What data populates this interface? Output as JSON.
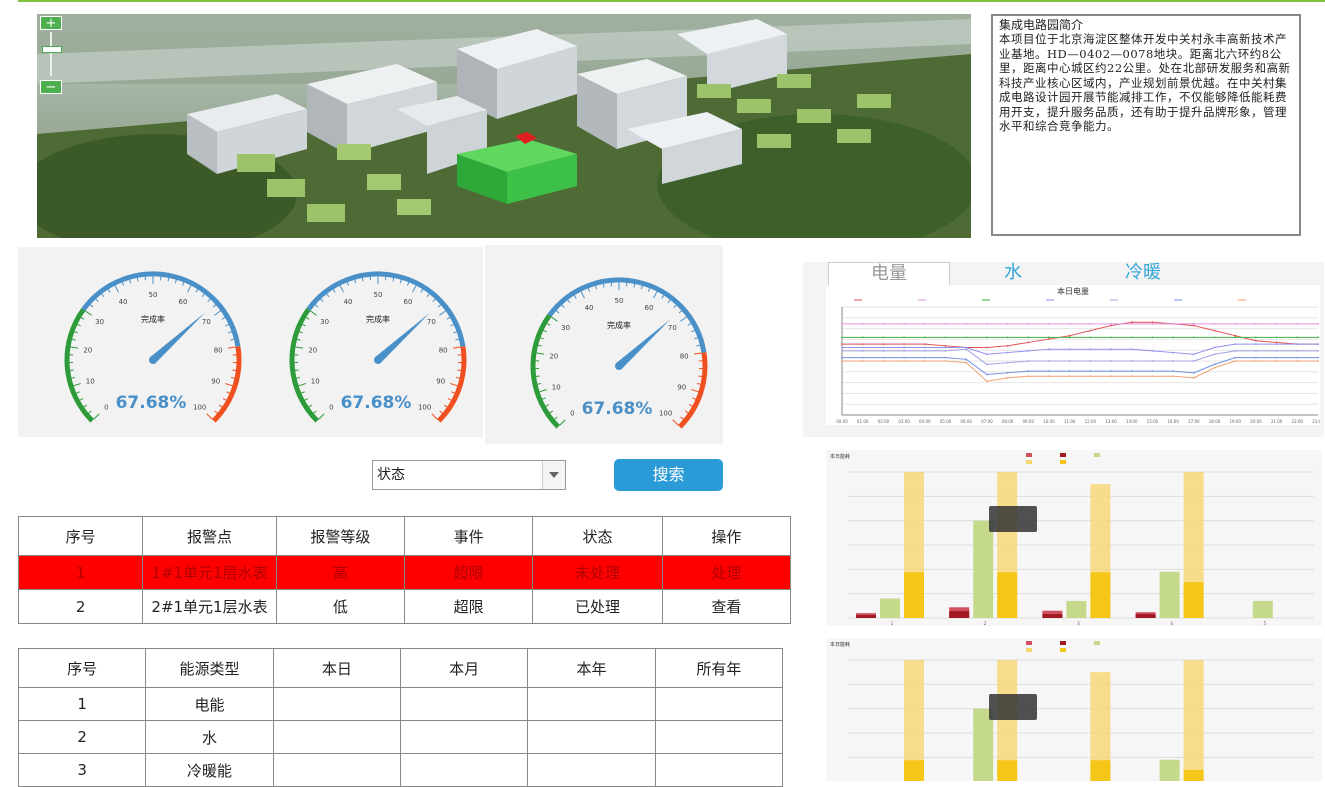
{
  "intro": {
    "title": "集成电路园简介",
    "body": "本项目位于北京海淀区整体开发中关村永丰高新技术产业基地。HD—0402—0078地块。距离北六环约8公里，距离中心城区约22公里。处在北部研发服务和高新科技产业核心区域内，产业规划前景优越。在中关村集成电路设计园开展节能减排工作，不仅能够降低能耗费用开支，提升服务品质，还有助于提升品牌形象，管理水平和综合竞争能力。"
  },
  "map_zoom": {
    "plus": "+",
    "minus": "−"
  },
  "gauges": [
    {
      "label": "完成率",
      "value": "67.68%",
      "level": 67.68,
      "ticks": [
        "0",
        "10",
        "20",
        "30",
        "40",
        "50",
        "60",
        "70",
        "80",
        "90",
        "100"
      ]
    },
    {
      "label": "完成率",
      "value": "67.68%",
      "level": 67.68,
      "ticks": [
        "0",
        "10",
        "20",
        "30",
        "40",
        "50",
        "60",
        "70",
        "80",
        "90",
        "100"
      ]
    },
    {
      "label": "完成率",
      "value": "67.68%",
      "level": 67.68,
      "ticks": [
        "0",
        "10",
        "20",
        "30",
        "40",
        "50",
        "60",
        "70",
        "80",
        "90",
        "100"
      ]
    }
  ],
  "search": {
    "select_value": "状态",
    "button": "搜索"
  },
  "alarm_table": {
    "headers": [
      "序号",
      "报警点",
      "报警等级",
      "事件",
      "状态",
      "操作"
    ],
    "rows": [
      [
        "1",
        "1#1单元1层水表",
        "高",
        "超限",
        "未处理",
        "处理"
      ],
      [
        "2",
        "2#1单元1层水表",
        "低",
        "超限",
        "已处理",
        "查看"
      ]
    ]
  },
  "energy_table": {
    "headers": [
      "序号",
      "能源类型",
      "本日",
      "本月",
      "本年",
      "所有年"
    ],
    "rows": [
      [
        "1",
        "电能",
        "",
        "",
        "",
        ""
      ],
      [
        "2",
        "水",
        "",
        "",
        "",
        ""
      ],
      [
        "3",
        "冷暖能",
        "",
        "",
        "",
        ""
      ]
    ]
  },
  "tabs": [
    "电量",
    "水",
    "冷暖"
  ],
  "colors": {
    "accent": "#2a9bd6",
    "alarm": "#ff0000",
    "gauge_blue": "#4a90c8",
    "gauge_green": "#2e9b3a",
    "gauge_red": "#f05020",
    "bar_yellow": "#f7d770",
    "bar_gold": "#f5c518",
    "bar_green": "#c5d98a",
    "bar_red": "#c0304a"
  },
  "chart_data": [
    {
      "type": "line",
      "title": "本日电量",
      "x": [
        "00:00",
        "01:00",
        "02:00",
        "03:00",
        "04:00",
        "05:00",
        "06:00",
        "07:00",
        "08:00",
        "09:00",
        "10:00",
        "11:00",
        "12:00",
        "13:00",
        "14:00",
        "15:00",
        "16:00",
        "17:00",
        "18:00",
        "19:00",
        "20:00",
        "21:00",
        "22:00",
        "23:00"
      ],
      "ylim": [
        0,
        320
      ],
      "series": [
        {
          "color": "#e05050",
          "values": [
            210,
            210,
            210,
            210,
            210,
            205,
            200,
            200,
            205,
            215,
            225,
            235,
            250,
            265,
            275,
            275,
            270,
            265,
            250,
            235,
            220,
            215,
            210,
            210
          ]
        },
        {
          "color": "#e090e0",
          "values": [
            270,
            270,
            270,
            270,
            270,
            270,
            270,
            270,
            270,
            270,
            270,
            270,
            270,
            270,
            270,
            270,
            270,
            270,
            270,
            270,
            270,
            270,
            270,
            270
          ]
        },
        {
          "color": "#40b040",
          "values": [
            230,
            230,
            230,
            230,
            230,
            230,
            230,
            230,
            230,
            230,
            230,
            230,
            230,
            230,
            230,
            230,
            230,
            230,
            230,
            230,
            230,
            230,
            230,
            230
          ]
        },
        {
          "color": "#9090f0",
          "values": [
            200,
            200,
            200,
            200,
            200,
            200,
            200,
            180,
            185,
            190,
            195,
            195,
            195,
            195,
            195,
            190,
            185,
            180,
            200,
            210,
            210,
            210,
            210,
            210
          ]
        },
        {
          "color": "#a0a0e0",
          "values": [
            190,
            190,
            190,
            190,
            190,
            190,
            195,
            150,
            155,
            160,
            160,
            160,
            160,
            160,
            160,
            160,
            160,
            160,
            180,
            190,
            190,
            190,
            190,
            190
          ]
        },
        {
          "color": "#7090e0",
          "values": [
            170,
            170,
            170,
            170,
            170,
            170,
            165,
            120,
            125,
            130,
            130,
            130,
            130,
            130,
            130,
            130,
            130,
            125,
            150,
            170,
            170,
            170,
            170,
            170
          ]
        },
        {
          "color": "#f0a070",
          "values": [
            160,
            160,
            160,
            160,
            160,
            160,
            155,
            100,
            110,
            115,
            115,
            115,
            115,
            115,
            115,
            115,
            115,
            110,
            140,
            160,
            160,
            160,
            160,
            160
          ]
        }
      ]
    },
    {
      "type": "bar",
      "title": "本日能耗",
      "categories": [
        "1",
        "2",
        "3",
        "4",
        "5"
      ],
      "ylim": [
        0,
        300
      ],
      "series": [
        {
          "color": "#d05060",
          "values": [
            10,
            22,
            15,
            12,
            0
          ]
        },
        {
          "color": "#a01820",
          "values": [
            6,
            14,
            8,
            8,
            0
          ]
        },
        {
          "color": "#c5d98a",
          "values": [
            40,
            200,
            35,
            95,
            35
          ]
        },
        {
          "color": "#f7d770",
          "values": [
            300,
            300,
            275,
            300,
            0
          ]
        },
        {
          "color": "#f5c518",
          "values": [
            94,
            94,
            94,
            74,
            0
          ]
        }
      ]
    },
    {
      "type": "bar",
      "title": "本日能耗",
      "categories": [
        "1",
        "2",
        "3",
        "4",
        "5"
      ],
      "ylim": [
        0,
        300
      ],
      "series": [
        {
          "color": "#d05060",
          "values": [
            10,
            22,
            15,
            12,
            0
          ]
        },
        {
          "color": "#a01820",
          "values": [
            6,
            14,
            8,
            8,
            0
          ]
        },
        {
          "color": "#c5d98a",
          "values": [
            40,
            200,
            35,
            95,
            35
          ]
        },
        {
          "color": "#f7d770",
          "values": [
            300,
            300,
            275,
            300,
            0
          ]
        },
        {
          "color": "#f5c518",
          "values": [
            94,
            94,
            94,
            74,
            0
          ]
        }
      ]
    }
  ]
}
